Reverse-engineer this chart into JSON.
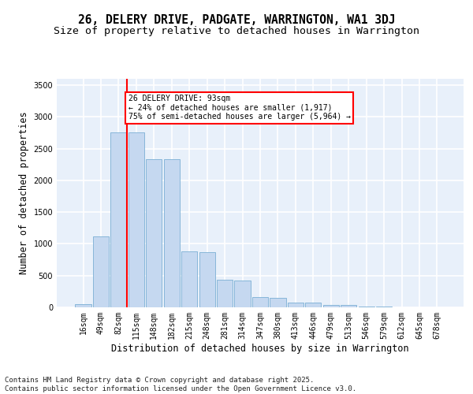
{
  "title": "26, DELERY DRIVE, PADGATE, WARRINGTON, WA1 3DJ",
  "subtitle": "Size of property relative to detached houses in Warrington",
  "xlabel": "Distribution of detached houses by size in Warrington",
  "ylabel": "Number of detached properties",
  "categories": [
    "16sqm",
    "49sqm",
    "82sqm",
    "115sqm",
    "148sqm",
    "182sqm",
    "215sqm",
    "248sqm",
    "281sqm",
    "314sqm",
    "347sqm",
    "380sqm",
    "413sqm",
    "446sqm",
    "479sqm",
    "513sqm",
    "546sqm",
    "579sqm",
    "612sqm",
    "645sqm",
    "678sqm"
  ],
  "values": [
    55,
    1120,
    2750,
    2750,
    2330,
    2330,
    880,
    870,
    440,
    420,
    160,
    155,
    75,
    70,
    40,
    35,
    10,
    8,
    5,
    3,
    2
  ],
  "bar_color": "#c5d8f0",
  "bar_edge_color": "#7bafd4",
  "vline_color": "red",
  "vline_x_index": 2,
  "annotation_text": "26 DELERY DRIVE: 93sqm\n← 24% of detached houses are smaller (1,917)\n75% of semi-detached houses are larger (5,964) →",
  "annotation_box_color": "white",
  "annotation_box_edge": "red",
  "ylim": [
    0,
    3600
  ],
  "yticks": [
    0,
    500,
    1000,
    1500,
    2000,
    2500,
    3000,
    3500
  ],
  "background_color": "#e8f0fa",
  "grid_color": "#ffffff",
  "footer": "Contains HM Land Registry data © Crown copyright and database right 2025.\nContains public sector information licensed under the Open Government Licence v3.0.",
  "title_fontsize": 10.5,
  "subtitle_fontsize": 9.5,
  "xlabel_fontsize": 8.5,
  "ylabel_fontsize": 8.5,
  "tick_fontsize": 7,
  "footer_fontsize": 6.5,
  "fig_width": 6.0,
  "fig_height": 5.0,
  "fig_dpi": 100
}
